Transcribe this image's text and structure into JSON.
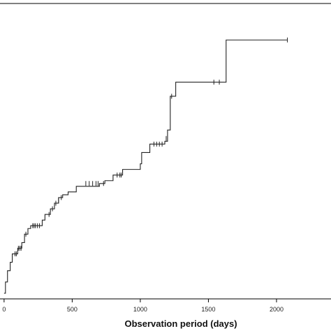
{
  "chart_data": {
    "type": "line",
    "subtype": "step",
    "xlabel": "Observation period (days)",
    "ylabel": "",
    "xlim": [
      -30,
      2400
    ],
    "ylim": [
      0,
      1
    ],
    "x_ticks": [
      0,
      500,
      1000,
      1500,
      2000
    ],
    "x_tick_labels": [
      "0",
      "500",
      "1000",
      "1500",
      "2000"
    ],
    "grid": false,
    "legend": "none",
    "series": [
      {
        "steps": [
          [
            0,
            0.02
          ],
          [
            10,
            0.06
          ],
          [
            25,
            0.1
          ],
          [
            45,
            0.13
          ],
          [
            60,
            0.16
          ],
          [
            100,
            0.18
          ],
          [
            130,
            0.2
          ],
          [
            150,
            0.23
          ],
          [
            175,
            0.25
          ],
          [
            195,
            0.26
          ],
          [
            280,
            0.28
          ],
          [
            300,
            0.3
          ],
          [
            340,
            0.32
          ],
          [
            370,
            0.34
          ],
          [
            400,
            0.36
          ],
          [
            430,
            0.37
          ],
          [
            470,
            0.38
          ],
          [
            530,
            0.4
          ],
          [
            700,
            0.41
          ],
          [
            740,
            0.42
          ],
          [
            800,
            0.44
          ],
          [
            870,
            0.46
          ],
          [
            1000,
            0.48
          ],
          [
            1010,
            0.52
          ],
          [
            1070,
            0.55
          ],
          [
            1180,
            0.56
          ],
          [
            1200,
            0.6
          ],
          [
            1220,
            0.72
          ],
          [
            1260,
            0.77
          ],
          [
            1630,
            0.92
          ],
          [
            2080,
            0.92
          ]
        ],
        "censored": [
          [
            80,
            0.16
          ],
          [
            90,
            0.16
          ],
          [
            105,
            0.18
          ],
          [
            115,
            0.18
          ],
          [
            125,
            0.18
          ],
          [
            160,
            0.23
          ],
          [
            210,
            0.26
          ],
          [
            220,
            0.26
          ],
          [
            230,
            0.26
          ],
          [
            245,
            0.26
          ],
          [
            260,
            0.26
          ],
          [
            330,
            0.3
          ],
          [
            355,
            0.32
          ],
          [
            380,
            0.34
          ],
          [
            400,
            0.35
          ],
          [
            420,
            0.36
          ],
          [
            600,
            0.41
          ],
          [
            625,
            0.41
          ],
          [
            650,
            0.41
          ],
          [
            675,
            0.41
          ],
          [
            690,
            0.41
          ],
          [
            730,
            0.41
          ],
          [
            830,
            0.44
          ],
          [
            850,
            0.44
          ],
          [
            860,
            0.44
          ],
          [
            1100,
            0.55
          ],
          [
            1120,
            0.55
          ],
          [
            1140,
            0.55
          ],
          [
            1160,
            0.55
          ],
          [
            1190,
            0.57
          ],
          [
            1230,
            0.72
          ],
          [
            1540,
            0.77
          ],
          [
            1580,
            0.77
          ],
          [
            2080,
            0.92
          ]
        ]
      }
    ]
  }
}
